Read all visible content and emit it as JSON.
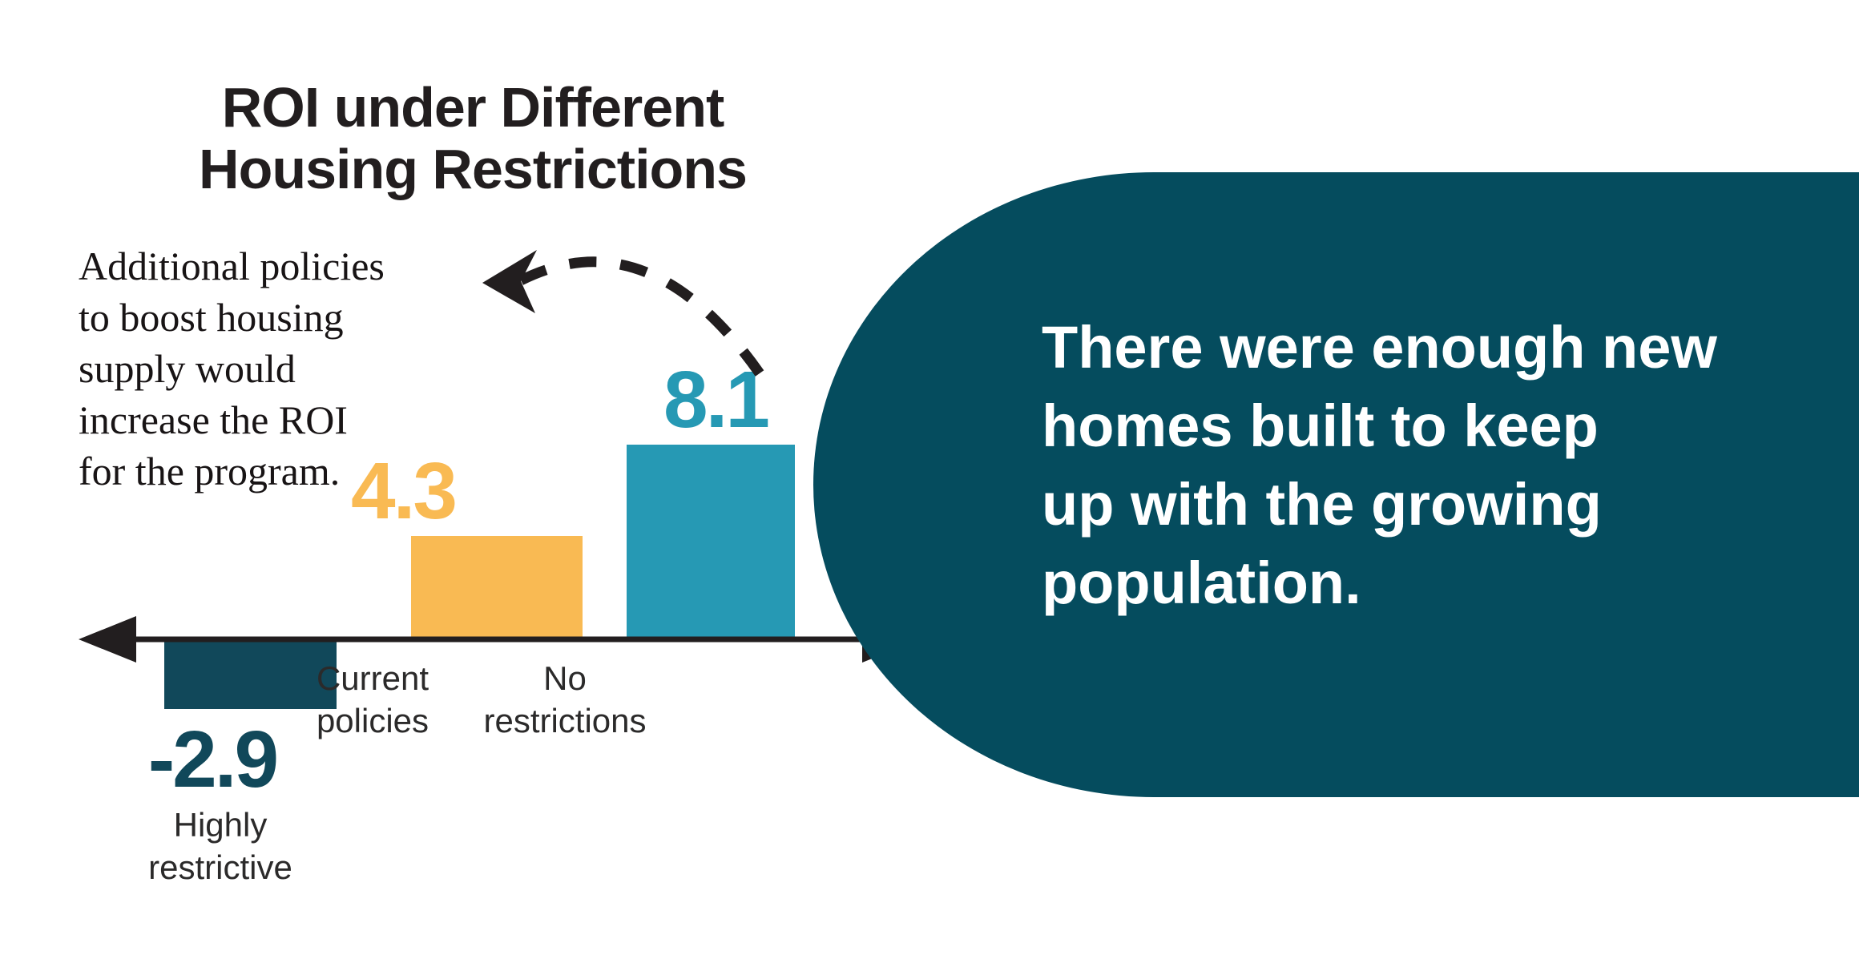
{
  "colors": {
    "background": "#ffffff",
    "ink": "#221E1F",
    "panel": "#054C5E",
    "bar_highly_restrictive": "#11485A",
    "bar_current_policies": "#F9BA53",
    "bar_no_restrictions": "#2699B4",
    "category_label": "#2B2A2A",
    "annotation_text": "#181415",
    "callout_text": "#ffffff"
  },
  "chart": {
    "title_lines": [
      "ROI under Different",
      "Housing Restrictions"
    ],
    "annotation_lines": [
      "Additional policies",
      "to boost housing",
      "supply would",
      "increase the ROI",
      "for the program."
    ]
  },
  "chart_data": {
    "type": "bar",
    "title": "ROI under Different Housing Restrictions",
    "categories": [
      "Highly restrictive",
      "Current policies",
      "No restrictions"
    ],
    "values": [
      -2.9,
      4.3,
      8.1
    ],
    "baseline": 0,
    "ylim": [
      -3.5,
      9
    ],
    "grid": false,
    "value_labels": true,
    "annotation": "Additional policies to boost housing supply would increase the ROI for the program.",
    "bars": [
      {
        "label_lines": [
          "Highly",
          "restrictive"
        ],
        "value": -2.9,
        "value_label": "-2.9",
        "color": "#11485A"
      },
      {
        "label_lines": [
          "Current",
          "policies"
        ],
        "value": 4.3,
        "value_label": "4.3",
        "color": "#F9BA53"
      },
      {
        "label_lines": [
          "No",
          "restrictions"
        ],
        "value": 8.1,
        "value_label": "8.1",
        "color": "#2699B4"
      }
    ]
  },
  "panel": {
    "text_lines": [
      "There were enough new",
      "homes built to keep",
      "up with the growing",
      "population."
    ]
  }
}
